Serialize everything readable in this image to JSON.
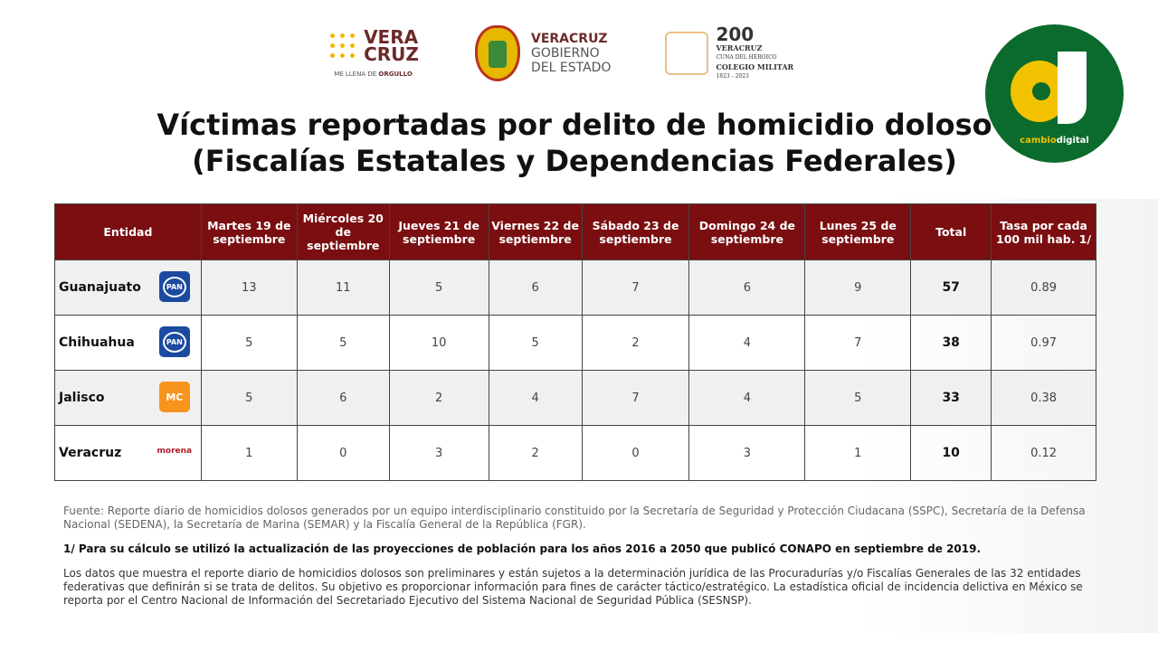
{
  "logos": {
    "veracruz_brand": {
      "line1": "VERA",
      "line2": "CRUZ",
      "tagline": "ME LLENA DE",
      "tagline_bold": "ORGULLO"
    },
    "gobierno": {
      "line1": "VERACRUZ",
      "line2": "GOBIERNO",
      "line3": "DEL ESTADO"
    },
    "bicentenario": {
      "number": "200",
      "line1": "VERACRUZ",
      "line2": "CUNA DEL HEROICO",
      "line3": "COLEGIO MILITAR",
      "years": "1823 - 2023"
    },
    "cambiodigital": {
      "a": "cambio",
      "b": "digital",
      "reg": "®"
    }
  },
  "title": {
    "line1": "Víctimas reportadas por delito de homicidio doloso",
    "line2": "(Fiscalías Estatales y Dependencias Federales)"
  },
  "table": {
    "headers": [
      "Entidad",
      "Martes 19 de septiembre",
      "Miércoles 20 de septiembre",
      "Jueves 21 de septiembre",
      "Viernes 22 de septiembre",
      "Sábado 23 de septiembre",
      "Domingo 24 de septiembre",
      "Lunes 25 de septiembre",
      "Total",
      "Tasa por cada 100 mil hab. 1/"
    ],
    "rows": [
      {
        "entidad": "Guanajuato",
        "party": "PAN",
        "values": [
          "13",
          "11",
          "5",
          "6",
          "7",
          "6",
          "9"
        ],
        "total": "57",
        "tasa": "0.89"
      },
      {
        "entidad": "Chihuahua",
        "party": "PAN",
        "values": [
          "5",
          "5",
          "10",
          "5",
          "2",
          "4",
          "7"
        ],
        "total": "38",
        "tasa": "0.97"
      },
      {
        "entidad": "Jalisco",
        "party": "MC",
        "values": [
          "5",
          "6",
          "2",
          "4",
          "7",
          "4",
          "5"
        ],
        "total": "33",
        "tasa": "0.38"
      },
      {
        "entidad": "Veracruz",
        "party": "morena",
        "values": [
          "1",
          "0",
          "3",
          "2",
          "0",
          "3",
          "1"
        ],
        "total": "10",
        "tasa": "0.12"
      }
    ]
  },
  "notes": {
    "fuente": "Fuente: Reporte diario de homicidios dolosos generados por un equipo interdisciplinario constituido por la Secretaría de Seguridad y Protección Ciudacana (SSPC), Secretaría de la Defensa Nacional (SEDENA), la Secretaría de Marina (SEMAR) y la Fiscalía General de la República (FGR).",
    "footnote": "1/ Para su cálculo se utilizó la actualización de las proyecciones de población para los años 2016 a 2050 que publicó CONAPO en septiembre de 2019.",
    "disclaimer": "Los datos que muestra el reporte diario de homicidios dolosos son preliminares y están sujetos a la determinación jurídica de las Procuradurías y/o Fiscalías Generales de las 32 entidades federativas que definirán si se trata de delitos. Su objetivo es proporcionar información para fines de carácter táctico/estratégico. La estadística oficial de incidencia delictiva en México se reporta por el Centro Nacional de Información del Secretariado Ejecutivo del Sistema Nacional de Seguridad Pública (SESNSP)."
  },
  "colors": {
    "header": "#7a0e10",
    "cd_green": "#0b6b2c",
    "cd_yellow": "#f2c200"
  }
}
